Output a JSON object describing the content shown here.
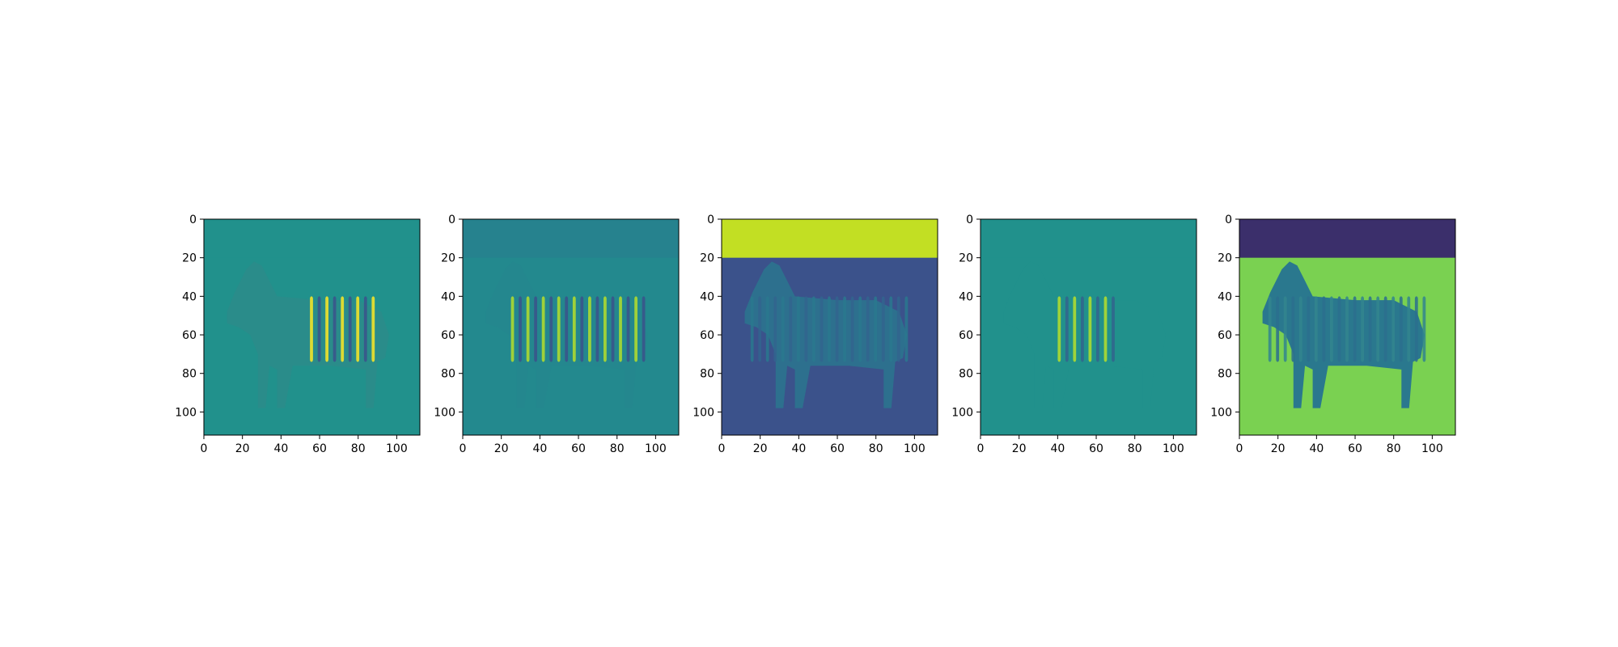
{
  "figure": {
    "background": "#ffffff",
    "colormap": [
      "#440154",
      "#3b528b",
      "#21918c",
      "#5ec962",
      "#fde725"
    ]
  },
  "chart_data": [
    {
      "type": "heatmap",
      "panel": 1,
      "xlim": [
        0,
        112
      ],
      "ylim": [
        112,
        0
      ],
      "xticks": [
        0,
        20,
        40,
        60,
        80,
        100
      ],
      "yticks": [
        0,
        20,
        40,
        60,
        80,
        100
      ],
      "xticklabels": [
        "0",
        "20",
        "40",
        "60",
        "80",
        "100"
      ],
      "yticklabels": [
        "0",
        "20",
        "40",
        "60",
        "80",
        "100"
      ],
      "background_color": "#21918c",
      "sky_color": "#21918c",
      "zebra_body_color": "#2a8c8a",
      "stripe_dark": "#3b528b",
      "stripe_light": "#fde725",
      "stripe_range_x": [
        55,
        90
      ]
    },
    {
      "type": "heatmap",
      "panel": 2,
      "xlim": [
        0,
        112
      ],
      "ylim": [
        112,
        0
      ],
      "xticks": [
        0,
        20,
        40,
        60,
        80,
        100
      ],
      "yticks": [
        0,
        20,
        40,
        60,
        80,
        100
      ],
      "xticklabels": [
        "0",
        "20",
        "40",
        "60",
        "80",
        "100"
      ],
      "yticklabels": [
        "0",
        "20",
        "40",
        "60",
        "80",
        "100"
      ],
      "background_color": "#23898e",
      "sky_color": "#26828e",
      "zebra_body_color": "#24878e",
      "stripe_dark": "#3b528b",
      "stripe_light": "#b5de2b",
      "stripe_range_x": [
        25,
        95
      ]
    },
    {
      "type": "heatmap",
      "panel": 3,
      "xlim": [
        0,
        112
      ],
      "ylim": [
        112,
        0
      ],
      "xticks": [
        0,
        20,
        40,
        60,
        80,
        100
      ],
      "yticks": [
        0,
        20,
        40,
        60,
        80,
        100
      ],
      "xticklabels": [
        "0",
        "20",
        "40",
        "60",
        "80",
        "100"
      ],
      "yticklabels": [
        "0",
        "20",
        "40",
        "60",
        "80",
        "100"
      ],
      "background_color": "#3b528b",
      "sky_color": "#c2df23",
      "zebra_body_color": "#2d708e",
      "stripe_dark": "#32648e",
      "stripe_light": "#2a788e",
      "stripe_range_x": [
        15,
        95
      ]
    },
    {
      "type": "heatmap",
      "panel": 4,
      "xlim": [
        0,
        112
      ],
      "ylim": [
        112,
        0
      ],
      "xticks": [
        0,
        20,
        40,
        60,
        80,
        100
      ],
      "yticks": [
        0,
        20,
        40,
        60,
        80,
        100
      ],
      "xticklabels": [
        "0",
        "20",
        "40",
        "60",
        "80",
        "100"
      ],
      "yticklabels": [
        "0",
        "20",
        "40",
        "60",
        "80",
        "100"
      ],
      "background_color": "#21918c",
      "sky_color": "#21918c",
      "zebra_body_color": "#21918c",
      "stripe_dark": "#33638d",
      "stripe_light": "#b5de2b",
      "stripe_range_x": [
        40,
        70
      ]
    },
    {
      "type": "heatmap",
      "panel": 5,
      "xlim": [
        0,
        112
      ],
      "ylim": [
        112,
        0
      ],
      "xticks": [
        0,
        20,
        40,
        60,
        80,
        100
      ],
      "yticks": [
        0,
        20,
        40,
        60,
        80,
        100
      ],
      "xticklabels": [
        "0",
        "20",
        "40",
        "60",
        "80",
        "100"
      ],
      "yticklabels": [
        "0",
        "20",
        "40",
        "60",
        "80",
        "100"
      ],
      "background_color": "#7ad151",
      "sky_color": "#3b2f6b",
      "zebra_body_color": "#2a788e",
      "stripe_dark": "#2c6f8e",
      "stripe_light": "#32858e",
      "stripe_range_x": [
        15,
        95
      ]
    }
  ]
}
